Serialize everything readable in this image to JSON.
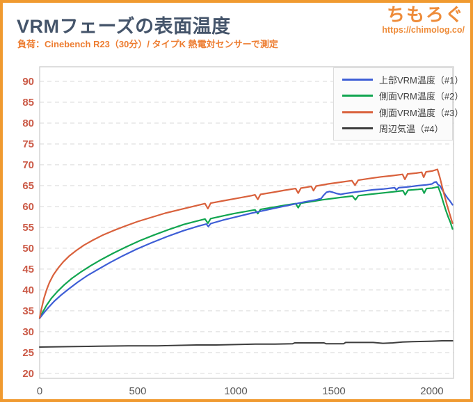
{
  "header": {
    "title": "VRMフェーズの表面温度",
    "subtitle": "負荷：Cinebench R23（30分）/ タイプK 熱電対センサーで測定",
    "brand_name": "ちもろぐ",
    "brand_url": "https://chimolog.co/"
  },
  "colors": {
    "frame_orange": "#f09a30",
    "title_color": "#44546a",
    "accent_orange": "#ed7d31",
    "y_tick_color": "#cb5a47",
    "x_tick_color": "#595959",
    "grid_color": "#d9d9d9",
    "plot_border_color": "#c8c8c8",
    "legend_bg": "#fbfbfb",
    "legend_border": "#dcdcdc"
  },
  "chart_data": {
    "type": "line",
    "title": "VRMフェーズの表面温度",
    "xlabel": "",
    "ylabel": "",
    "x_unit": "seconds (elapsed, Cinebench R23 30min run)",
    "y_unit": "°C",
    "xlim": [
      0,
      2110
    ],
    "ylim": [
      18.8,
      93.5
    ],
    "xticks": [
      0,
      500,
      1000,
      1500,
      2000
    ],
    "yticks": [
      20,
      25,
      30,
      35,
      40,
      45,
      50,
      55,
      60,
      65,
      70,
      75,
      80,
      85,
      90
    ],
    "grid": "horizontal-dashed",
    "legend_position": "top-right",
    "series": [
      {
        "name": "上部VRM温度（#1）",
        "color": "#3e5ed6",
        "points": [
          [
            0,
            33.2
          ],
          [
            20,
            34.4
          ],
          [
            45,
            35.8
          ],
          [
            75,
            37.3
          ],
          [
            110,
            38.8
          ],
          [
            150,
            40.3
          ],
          [
            195,
            41.9
          ],
          [
            245,
            43.5
          ],
          [
            300,
            45.0
          ],
          [
            360,
            46.6
          ],
          [
            425,
            48.2
          ],
          [
            495,
            49.8
          ],
          [
            570,
            51.3
          ],
          [
            650,
            52.8
          ],
          [
            733,
            54.2
          ],
          [
            810,
            55.3
          ],
          [
            850,
            55.8
          ],
          [
            860,
            55.2
          ],
          [
            872,
            55.9
          ],
          [
            940,
            56.8
          ],
          [
            1010,
            57.6
          ],
          [
            1080,
            58.4
          ],
          [
            1150,
            59.1
          ],
          [
            1220,
            59.8
          ],
          [
            1290,
            60.5
          ],
          [
            1350,
            61.1
          ],
          [
            1410,
            61.6
          ],
          [
            1435,
            61.9
          ],
          [
            1448,
            62.7
          ],
          [
            1462,
            63.4
          ],
          [
            1478,
            63.6
          ],
          [
            1495,
            63.4
          ],
          [
            1515,
            63.1
          ],
          [
            1535,
            62.9
          ],
          [
            1555,
            63.1
          ],
          [
            1600,
            63.4
          ],
          [
            1650,
            63.7
          ],
          [
            1700,
            64.0
          ],
          [
            1755,
            64.2
          ],
          [
            1810,
            64.5
          ],
          [
            1818,
            64.0
          ],
          [
            1830,
            64.5
          ],
          [
            1880,
            64.7
          ],
          [
            1930,
            65.0
          ],
          [
            1975,
            65.2
          ],
          [
            2000,
            65.4
          ],
          [
            2012,
            65.8
          ],
          [
            2022,
            65.9
          ],
          [
            2030,
            65.3
          ],
          [
            2042,
            64.9
          ],
          [
            2055,
            63.8
          ],
          [
            2068,
            62.8
          ],
          [
            2080,
            62.0
          ],
          [
            2092,
            61.3
          ],
          [
            2105,
            60.4
          ]
        ]
      },
      {
        "name": "側面VRM温度（#2）",
        "color": "#10a54f",
        "points": [
          [
            0,
            33.2
          ],
          [
            15,
            34.6
          ],
          [
            35,
            36.3
          ],
          [
            60,
            38.0
          ],
          [
            90,
            39.6
          ],
          [
            125,
            41.2
          ],
          [
            165,
            42.8
          ],
          [
            210,
            44.3
          ],
          [
            260,
            45.8
          ],
          [
            315,
            47.3
          ],
          [
            375,
            48.8
          ],
          [
            440,
            50.3
          ],
          [
            510,
            51.8
          ],
          [
            585,
            53.2
          ],
          [
            660,
            54.5
          ],
          [
            735,
            55.7
          ],
          [
            800,
            56.5
          ],
          [
            843,
            57.0
          ],
          [
            858,
            56.0
          ],
          [
            872,
            57.1
          ],
          [
            930,
            57.7
          ],
          [
            990,
            58.3
          ],
          [
            1050,
            58.8
          ],
          [
            1098,
            59.2
          ],
          [
            1112,
            58.3
          ],
          [
            1126,
            59.3
          ],
          [
            1190,
            59.8
          ],
          [
            1250,
            60.3
          ],
          [
            1305,
            60.7
          ],
          [
            1318,
            59.7
          ],
          [
            1332,
            60.8
          ],
          [
            1390,
            61.2
          ],
          [
            1440,
            61.6
          ],
          [
            1490,
            61.9
          ],
          [
            1540,
            62.2
          ],
          [
            1595,
            62.5
          ],
          [
            1610,
            61.6
          ],
          [
            1625,
            62.6
          ],
          [
            1680,
            62.9
          ],
          [
            1740,
            63.2
          ],
          [
            1800,
            63.5
          ],
          [
            1852,
            63.8
          ],
          [
            1864,
            62.8
          ],
          [
            1878,
            63.9
          ],
          [
            1930,
            64.1
          ],
          [
            1950,
            64.2
          ],
          [
            1960,
            63.2
          ],
          [
            1972,
            64.3
          ],
          [
            2000,
            64.4
          ],
          [
            2020,
            64.6
          ],
          [
            2032,
            64.7
          ],
          [
            2045,
            63.0
          ],
          [
            2058,
            61.0
          ],
          [
            2070,
            59.2
          ],
          [
            2082,
            57.6
          ],
          [
            2094,
            56.2
          ],
          [
            2105,
            54.6
          ]
        ]
      },
      {
        "name": "側面VRM温度（#3）",
        "color": "#d9613c",
        "points": [
          [
            0,
            33.3
          ],
          [
            10,
            35.6
          ],
          [
            22,
            38.0
          ],
          [
            35,
            40.0
          ],
          [
            50,
            41.8
          ],
          [
            70,
            43.6
          ],
          [
            95,
            45.3
          ],
          [
            120,
            46.7
          ],
          [
            150,
            48.1
          ],
          [
            185,
            49.4
          ],
          [
            225,
            50.7
          ],
          [
            270,
            51.9
          ],
          [
            320,
            53.1
          ],
          [
            375,
            54.2
          ],
          [
            435,
            55.3
          ],
          [
            500,
            56.4
          ],
          [
            570,
            57.4
          ],
          [
            640,
            58.4
          ],
          [
            710,
            59.2
          ],
          [
            780,
            60.0
          ],
          [
            843,
            60.7
          ],
          [
            858,
            59.5
          ],
          [
            872,
            60.8
          ],
          [
            940,
            61.4
          ],
          [
            1010,
            62.0
          ],
          [
            1080,
            62.6
          ],
          [
            1098,
            62.8
          ],
          [
            1112,
            61.7
          ],
          [
            1126,
            62.9
          ],
          [
            1190,
            63.4
          ],
          [
            1250,
            63.9
          ],
          [
            1305,
            64.3
          ],
          [
            1318,
            63.2
          ],
          [
            1332,
            64.4
          ],
          [
            1385,
            64.8
          ],
          [
            1396,
            63.8
          ],
          [
            1410,
            64.9
          ],
          [
            1470,
            65.4
          ],
          [
            1530,
            65.8
          ],
          [
            1592,
            66.2
          ],
          [
            1608,
            65.1
          ],
          [
            1624,
            66.3
          ],
          [
            1680,
            66.7
          ],
          [
            1740,
            67.1
          ],
          [
            1800,
            67.4
          ],
          [
            1850,
            67.7
          ],
          [
            1862,
            66.5
          ],
          [
            1876,
            67.8
          ],
          [
            1920,
            68.0
          ],
          [
            1948,
            68.2
          ],
          [
            1958,
            67.0
          ],
          [
            1970,
            68.3
          ],
          [
            2000,
            68.5
          ],
          [
            2015,
            68.7
          ],
          [
            2028,
            68.9
          ],
          [
            2040,
            67.0
          ],
          [
            2052,
            64.8
          ],
          [
            2064,
            62.6
          ],
          [
            2076,
            60.5
          ],
          [
            2088,
            58.6
          ],
          [
            2097,
            57.2
          ],
          [
            2105,
            56.0
          ]
        ]
      },
      {
        "name": "周辺気温（#4）",
        "color": "#3d3d3d",
        "points": [
          [
            0,
            26.3
          ],
          [
            150,
            26.4
          ],
          [
            300,
            26.5
          ],
          [
            450,
            26.6
          ],
          [
            600,
            26.6
          ],
          [
            700,
            26.7
          ],
          [
            800,
            26.8
          ],
          [
            900,
            26.8
          ],
          [
            1000,
            26.9
          ],
          [
            1100,
            27.0
          ],
          [
            1200,
            27.0
          ],
          [
            1290,
            27.1
          ],
          [
            1300,
            27.3
          ],
          [
            1450,
            27.3
          ],
          [
            1460,
            27.1
          ],
          [
            1550,
            27.1
          ],
          [
            1560,
            27.4
          ],
          [
            1700,
            27.4
          ],
          [
            1750,
            27.2
          ],
          [
            1800,
            27.3
          ],
          [
            1850,
            27.5
          ],
          [
            1900,
            27.6
          ],
          [
            2000,
            27.7
          ],
          [
            2050,
            27.8
          ],
          [
            2105,
            27.8
          ]
        ]
      }
    ]
  }
}
